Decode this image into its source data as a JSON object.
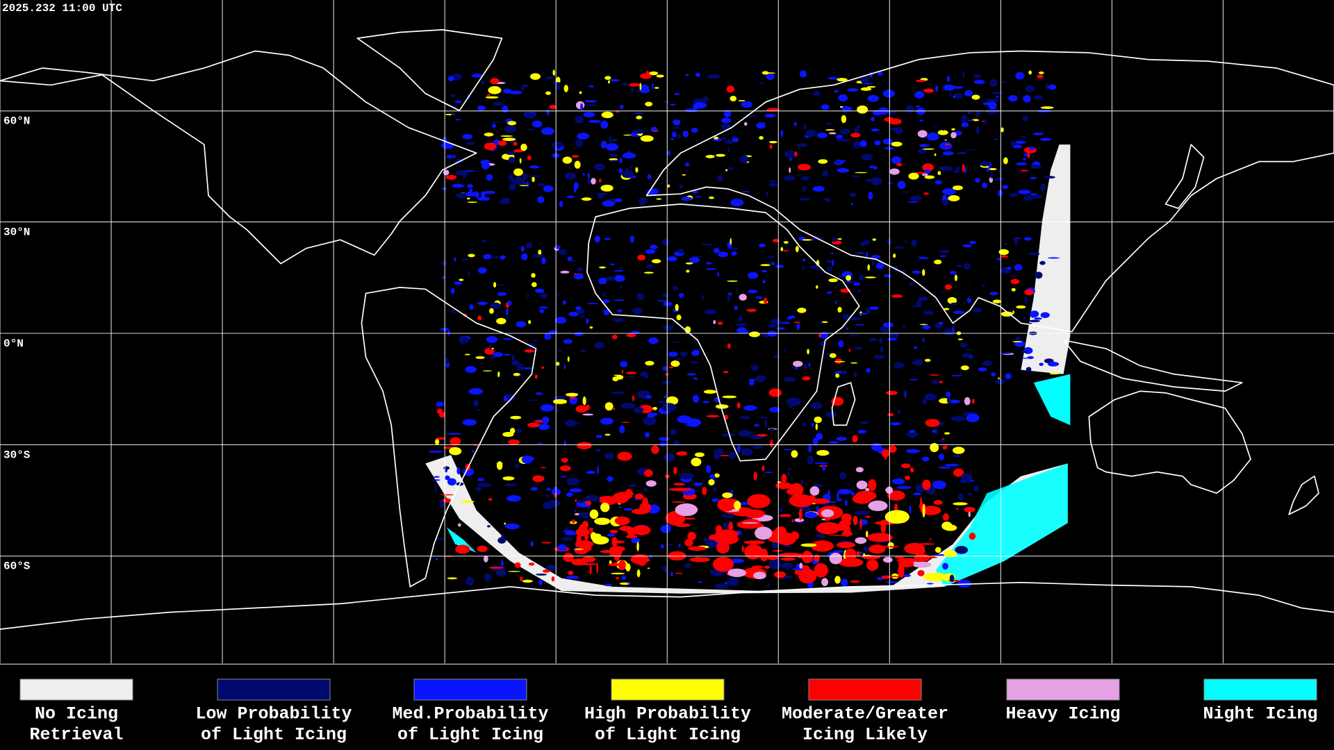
{
  "header": {
    "timestamp": "2025.232 11:00 UTC"
  },
  "lat_labels": [
    "60°N",
    "30°N",
    "0°N",
    "30°S",
    "60°S"
  ],
  "legend": [
    {
      "line1": "No Icing",
      "line2": "Retrieval",
      "color": "#eeeeee"
    },
    {
      "line1": "Low Probability",
      "line2": "of Light Icing",
      "color": "#000a6e"
    },
    {
      "line1": "Med.Probability",
      "line2": "of Light Icing",
      "color": "#0a14ff"
    },
    {
      "line1": "High Probability",
      "line2": "of Light Icing",
      "color": "#ffff00"
    },
    {
      "line1": "Moderate/Greater",
      "line2": "Icing Likely",
      "color": "#ff0000"
    },
    {
      "line1": "Heavy Icing",
      "line2": "",
      "color": "#e6a0e6"
    },
    {
      "line1": "Night Icing",
      "line2": "",
      "color": "#00ffff"
    }
  ]
}
